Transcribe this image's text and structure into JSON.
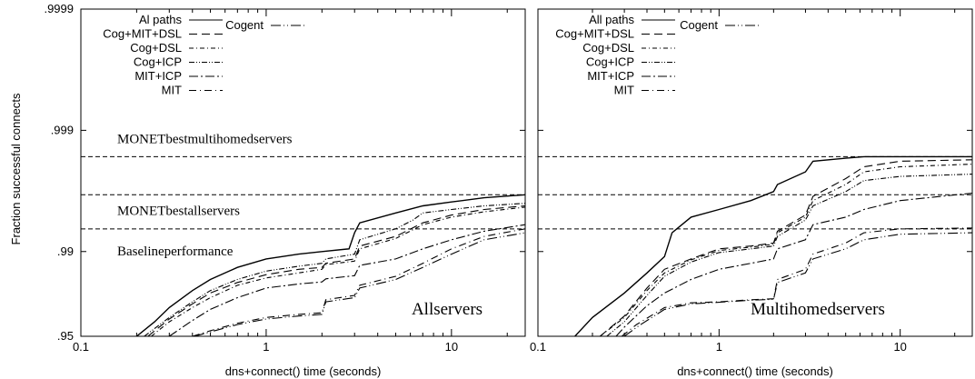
{
  "chart_data": [
    {
      "type": "line",
      "panel_label": "Allservers",
      "xlabel": "dns+connect() time (seconds)",
      "ylabel": "Fraction successful connects",
      "xscale": "log",
      "yscale": "log-complement (nines)",
      "xlim": [
        0.1,
        25
      ],
      "ylim": [
        0.95,
        0.9999
      ],
      "xticks": [
        "0.1",
        "1",
        "10"
      ],
      "yticks": [
        ".95",
        ".99",
        ".999",
        ".9999"
      ],
      "legend_position": "top-left",
      "annotations": [
        {
          "text": "MONETbestmultihomedservers",
          "y": 0.99835
        },
        {
          "text": "MONETbestallservers",
          "y": 0.9966
        },
        {
          "text": "Baselineperformance",
          "y": 0.9935
        }
      ],
      "reference_lines": [
        0.99835,
        0.9966,
        0.9935
      ],
      "series": [
        {
          "name": "Al paths",
          "dash": "",
          "x": [
            0.2,
            0.25,
            0.3,
            0.4,
            0.5,
            0.7,
            1.0,
            1.5,
            2.0,
            2.8,
            3.0,
            3.2,
            5,
            7,
            10,
            15,
            25
          ],
          "y": [
            0.95,
            0.962,
            0.971,
            0.979,
            0.983,
            0.9865,
            0.9885,
            0.9895,
            0.99,
            0.9905,
            0.993,
            0.9942,
            0.9952,
            0.9958,
            0.9961,
            0.9964,
            0.9966
          ]
        },
        {
          "name": "Cog+MIT+DSL",
          "dash": "9 5",
          "x": [
            0.23,
            0.3,
            0.4,
            0.5,
            0.7,
            1.0,
            1.5,
            2.0,
            2.1,
            3.0,
            3.2,
            5,
            7,
            10,
            15,
            25
          ],
          "y": [
            0.95,
            0.964,
            0.973,
            0.978,
            0.982,
            0.9845,
            0.986,
            0.9865,
            0.9875,
            0.9885,
            0.991,
            0.9925,
            0.9942,
            0.995,
            0.9955,
            0.9958
          ]
        },
        {
          "name": "Cog+DSL",
          "dash": "5 3 1 3",
          "x": [
            0.24,
            0.3,
            0.4,
            0.5,
            0.7,
            1.0,
            1.5,
            2.0,
            2.1,
            3.0,
            3.2,
            5,
            7,
            10,
            15,
            25
          ],
          "y": [
            0.95,
            0.962,
            0.971,
            0.976,
            0.981,
            0.9835,
            0.985,
            0.986,
            0.9872,
            0.988,
            0.9905,
            0.9922,
            0.994,
            0.9948,
            0.9953,
            0.9957
          ]
        },
        {
          "name": "Cog+ICP",
          "dash": "6 2 1 2 1 2",
          "x": [
            0.22,
            0.3,
            0.4,
            0.5,
            0.7,
            1.0,
            1.5,
            2.0,
            2.1,
            3.0,
            3.2,
            5,
            6.2,
            7,
            10,
            15,
            25
          ],
          "y": [
            0.95,
            0.965,
            0.974,
            0.979,
            0.983,
            0.9855,
            0.9868,
            0.9875,
            0.9885,
            0.9895,
            0.992,
            0.9935,
            0.9945,
            0.9952,
            0.9955,
            0.9958,
            0.996
          ]
        },
        {
          "name": "MIT+ICP",
          "dash": "10 3 2 3",
          "x": [
            0.3,
            0.4,
            0.5,
            0.7,
            1.0,
            1.5,
            2.0,
            2.1,
            3.0,
            3.2,
            5,
            7,
            10,
            15,
            25
          ],
          "y": [
            0.95,
            0.963,
            0.97,
            0.976,
            0.98,
            0.9815,
            0.9822,
            0.9832,
            0.9842,
            0.987,
            0.9885,
            0.9905,
            0.992,
            0.9932,
            0.994
          ]
        },
        {
          "name": "MIT",
          "dash": "8 4 1 4",
          "x": [
            0.4,
            0.5,
            0.7,
            1.0,
            1.5,
            2.0,
            2.1,
            3.0,
            3.2,
            5,
            7,
            10,
            15,
            25
          ],
          "y": [
            0.95,
            0.955,
            0.961,
            0.965,
            0.967,
            0.968,
            0.975,
            0.977,
            0.981,
            0.984,
            0.9875,
            0.9905,
            0.9925,
            0.9935
          ]
        },
        {
          "name": "Cogent",
          "dash": "11 3 1 3 1 3",
          "x": [
            0.41,
            0.5,
            0.7,
            1.0,
            1.5,
            2.0,
            2.1,
            3.0,
            3.2,
            5,
            7,
            10,
            15,
            25
          ],
          "y": [
            0.95,
            0.954,
            0.96,
            0.964,
            0.966,
            0.967,
            0.974,
            0.976,
            0.98,
            0.983,
            0.9865,
            0.9895,
            0.992,
            0.993
          ]
        }
      ]
    },
    {
      "type": "line",
      "panel_label": "Multihomedservers",
      "xlabel": "dns+connect() time (seconds)",
      "xscale": "log",
      "yscale": "log-complement (nines)",
      "xlim": [
        0.1,
        25
      ],
      "ylim": [
        0.95,
        0.9999
      ],
      "xticks": [
        "0.1",
        "1",
        "10"
      ],
      "legend_position": "top-left",
      "reference_lines": [
        0.99835,
        0.9966,
        0.9935
      ],
      "series": [
        {
          "name": "All paths",
          "dash": "",
          "x": [
            0.16,
            0.2,
            0.3,
            0.4,
            0.5,
            0.55,
            0.7,
            1.0,
            1.5,
            2.0,
            2.1,
            3.0,
            3.3,
            5,
            6.3,
            10,
            25
          ],
          "y": [
            0.95,
            0.965,
            0.978,
            0.985,
            0.989,
            0.993,
            0.9948,
            0.9955,
            0.9962,
            0.9968,
            0.9972,
            0.9978,
            0.9982,
            0.9983,
            0.99835,
            0.99835,
            0.99835
          ]
        },
        {
          "name": "Cog+MIT+DSL",
          "dash": "9 5",
          "x": [
            0.22,
            0.3,
            0.4,
            0.5,
            0.7,
            1.0,
            1.5,
            2.0,
            2.1,
            3.0,
            3.3,
            5,
            6.3,
            10,
            25
          ],
          "y": [
            0.95,
            0.966,
            0.98,
            0.986,
            0.9885,
            0.9905,
            0.991,
            0.9915,
            0.9932,
            0.995,
            0.9965,
            0.9975,
            0.998,
            0.9982,
            0.99825
          ]
        },
        {
          "name": "Cog+DSL",
          "dash": "5 3 1 3",
          "x": [
            0.22,
            0.3,
            0.4,
            0.5,
            0.7,
            1.0,
            1.5,
            2.0,
            2.1,
            3.0,
            3.3,
            5,
            6.3,
            10,
            25
          ],
          "y": [
            0.95,
            0.965,
            0.979,
            0.985,
            0.9883,
            0.9902,
            0.9908,
            0.9913,
            0.993,
            0.9948,
            0.9962,
            0.9972,
            0.9978,
            0.998,
            0.9981
          ]
        },
        {
          "name": "Cog+ICP",
          "dash": "6 2 1 2 1 2",
          "x": [
            0.24,
            0.3,
            0.4,
            0.5,
            0.7,
            1.0,
            1.5,
            2.0,
            2.1,
            3.0,
            3.3,
            5,
            6.3,
            10,
            25
          ],
          "y": [
            0.95,
            0.962,
            0.977,
            0.984,
            0.9878,
            0.9898,
            0.9905,
            0.991,
            0.9925,
            0.9945,
            0.9958,
            0.9968,
            0.9974,
            0.9976,
            0.9977
          ]
        },
        {
          "name": "MIT+ICP",
          "dash": "10 3 2 3",
          "x": [
            0.27,
            0.3,
            0.4,
            0.5,
            0.7,
            1.0,
            1.5,
            2.0,
            2.1,
            3.0,
            3.3,
            5,
            6.3,
            10,
            25
          ],
          "y": [
            0.95,
            0.958,
            0.972,
            0.978,
            0.983,
            0.986,
            0.9875,
            0.9885,
            0.9905,
            0.992,
            0.994,
            0.9948,
            0.9955,
            0.9962,
            0.9967
          ]
        },
        {
          "name": "MIT",
          "dash": "8 4 1 4",
          "x": [
            0.29,
            0.35,
            0.5,
            0.7,
            1.0,
            1.5,
            2.0,
            2.1,
            3.0,
            3.3,
            5,
            6.3,
            10,
            25
          ],
          "y": [
            0.95,
            0.96,
            0.971,
            0.9735,
            0.974,
            0.975,
            0.9755,
            0.983,
            0.986,
            0.9895,
            0.9915,
            0.993,
            0.9935,
            0.9936
          ]
        },
        {
          "name": "Cogent",
          "dash": "11 3 1 3 1 3",
          "x": [
            0.3,
            0.36,
            0.5,
            0.7,
            1.0,
            1.5,
            2.0,
            2.1,
            3.0,
            3.3,
            5,
            6.3,
            10,
            25
          ],
          "y": [
            0.95,
            0.959,
            0.97,
            0.973,
            0.9738,
            0.9748,
            0.9752,
            0.982,
            0.985,
            0.9885,
            0.9905,
            0.992,
            0.9928,
            0.993
          ]
        }
      ]
    }
  ]
}
